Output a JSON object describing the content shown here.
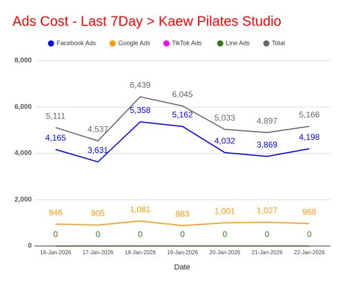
{
  "chart_data": {
    "type": "line",
    "title": "Ads Cost - Last 7Day > Kaew Pilates Studio",
    "title_color": "#ff0000",
    "x_label": "Date",
    "categories": [
      "16-Jan-2026",
      "17-Jan-2026",
      "18-Jan-2026",
      "19-Jan-2026",
      "20-Jan-2026",
      "21-Jan-2026",
      "22-Jan-2026"
    ],
    "series": [
      {
        "name": "Facebook Ads",
        "color": "#0000ff",
        "values": [
          4165,
          3631,
          5358,
          5162,
          4032,
          3869,
          4198
        ],
        "value_labels": [
          "4,165",
          "3,631",
          "5,358",
          "5,162",
          "4,032",
          "3,869",
          "4,198"
        ]
      },
      {
        "name": "Google Ads",
        "color": "#ff9900",
        "values": [
          946,
          905,
          1081,
          883,
          1001,
          1027,
          968
        ],
        "value_labels": [
          "946",
          "905",
          "1,081",
          "883",
          "1,001",
          "1,027",
          "968"
        ]
      },
      {
        "name": "TikTok Ads",
        "color": "#ff00ff",
        "values": [
          0,
          0,
          0,
          0,
          0,
          0,
          0
        ]
      },
      {
        "name": "Line Ads",
        "color": "#38761d",
        "values": [
          0,
          0,
          0,
          0,
          0,
          0,
          0
        ],
        "value_labels": [
          "0",
          "0",
          "0",
          "0",
          "0",
          "0",
          "0"
        ]
      },
      {
        "name": "Total",
        "color": "#666666",
        "values": [
          5111,
          4537,
          6439,
          6045,
          5033,
          4897,
          5166
        ],
        "value_labels": [
          "5,111",
          "4,537",
          "6,439",
          "6,045",
          "5,033",
          "4,897",
          "5,166"
        ]
      }
    ],
    "ylim": [
      0,
      8000
    ],
    "yticks": [
      0,
      {
        "value": 2000,
        "label": "2,000"
      },
      {
        "value": 4000,
        "label": "4,000"
      },
      {
        "value": 6000,
        "label": "6,000"
      },
      {
        "value": 8000,
        "label": "8,000"
      }
    ],
    "grid": true
  }
}
